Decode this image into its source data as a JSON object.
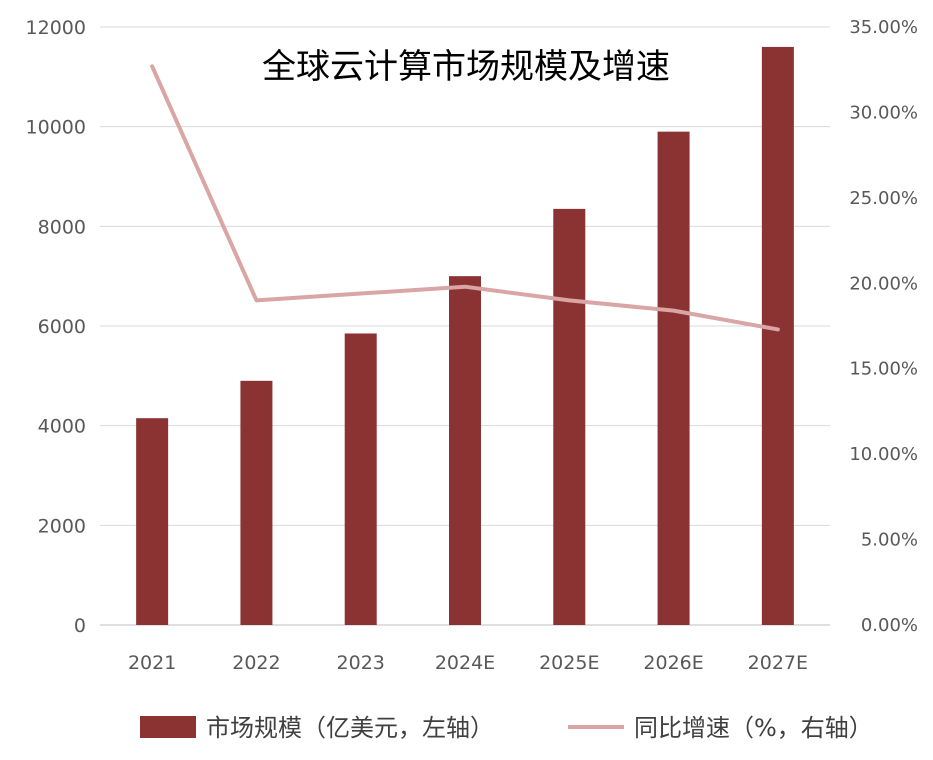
{
  "chart_data": {
    "type": "bar+line",
    "title": "全球云计算市场规模及增速",
    "categories": [
      "2021",
      "2022",
      "2023",
      "2024E",
      "2025E",
      "2026E",
      "2027E"
    ],
    "series": [
      {
        "name": "市场规模（亿美元，左轴）",
        "type": "bar",
        "axis": "left",
        "color": "#8B3232",
        "values": [
          4150,
          4900,
          5850,
          7000,
          8350,
          9900,
          11600
        ]
      },
      {
        "name": "同比增速（%，右轴）",
        "type": "line",
        "axis": "right",
        "color": "#D9A5A5",
        "values": [
          32.7,
          19.0,
          19.4,
          19.8,
          19.0,
          18.4,
          17.3
        ]
      }
    ],
    "y_left": {
      "min": 0,
      "max": 12000,
      "ticks": [
        0,
        2000,
        4000,
        6000,
        8000,
        10000,
        12000
      ],
      "tick_labels": [
        "0",
        "2000",
        "4000",
        "6000",
        "8000",
        "10000",
        "12000"
      ]
    },
    "y_right": {
      "min": 0,
      "max": 35,
      "ticks": [
        0,
        5,
        10,
        15,
        20,
        25,
        30,
        35
      ],
      "tick_labels": [
        "0.00%",
        "5.00%",
        "10.00%",
        "15.00%",
        "20.00%",
        "25.00%",
        "30.00%",
        "35.00%"
      ]
    },
    "grid": true,
    "legend": "bottom"
  }
}
